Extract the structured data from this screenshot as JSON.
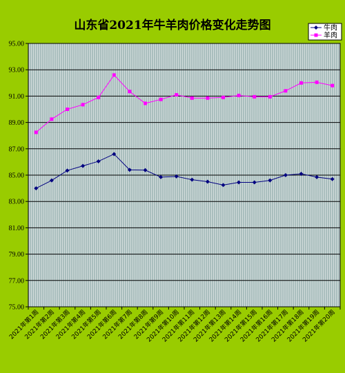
{
  "chart_data": {
    "type": "line",
    "title": "山东省2021年牛羊肉价格变化走势图",
    "xlabel": "",
    "ylabel": "",
    "ylim": [
      75,
      95
    ],
    "yticks": [
      "75.00",
      "77.00",
      "79.00",
      "81.00",
      "83.00",
      "85.00",
      "87.00",
      "89.00",
      "91.00",
      "93.00",
      "95.00"
    ],
    "grid": true,
    "legend_position": "top-right",
    "categories": [
      "2021年第1周",
      "2021年第2周",
      "2021年第3周",
      "2021年第4周",
      "2021年第5周",
      "2021年第6周",
      "2021年第7周",
      "2021年第8周",
      "2021年第9周",
      "2021年第10周",
      "2021年第11周",
      "2021年第12周",
      "2021年第13周",
      "2021年第14周",
      "2021年第15周",
      "2021年第16周",
      "2021年第17周",
      "2021年第18周",
      "2021年第19周",
      "2021年第20周"
    ],
    "series": [
      {
        "name": "牛肉",
        "color": "#000080",
        "marker": "diamond",
        "values": [
          84.0,
          84.6,
          85.35,
          85.7,
          86.05,
          86.6,
          85.4,
          85.38,
          84.85,
          84.9,
          84.65,
          84.5,
          84.25,
          84.45,
          84.45,
          84.6,
          85.0,
          85.1,
          84.85,
          84.7
        ]
      },
      {
        "name": "羊肉",
        "color": "#ff00ff",
        "marker": "square",
        "values": [
          88.25,
          89.25,
          90.0,
          90.35,
          90.9,
          92.6,
          91.35,
          90.45,
          90.75,
          91.1,
          90.85,
          90.85,
          90.9,
          91.05,
          90.95,
          90.95,
          91.4,
          92.0,
          92.05,
          91.8
        ]
      }
    ]
  }
}
